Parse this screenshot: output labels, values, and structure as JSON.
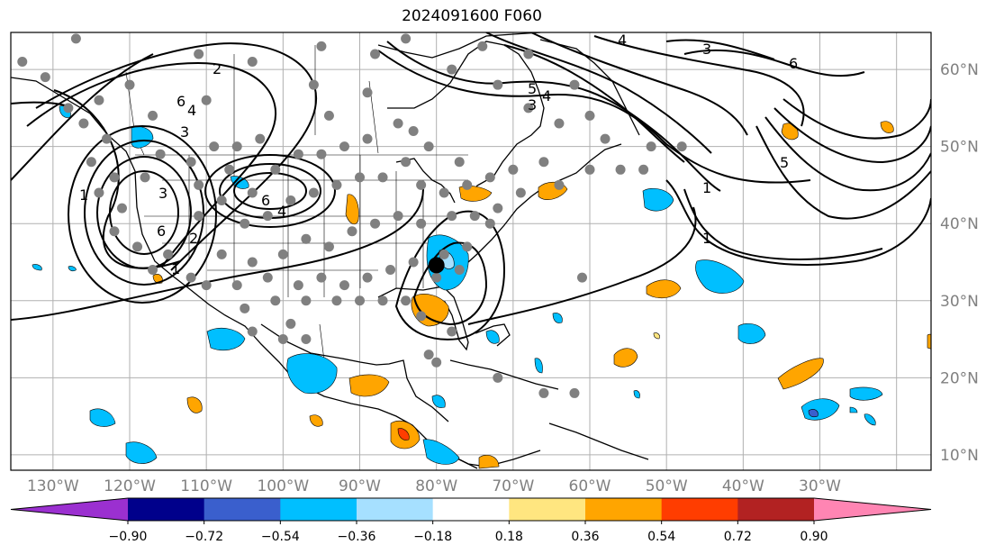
{
  "title": "2024091600 F060",
  "lon_labels": [
    "130°W",
    "120°W",
    "110°W",
    "100°W",
    "90°W",
    "80°W",
    "70°W",
    "60°W",
    "50°W",
    "40°W",
    "30°W"
  ],
  "lat_labels": [
    "60°N",
    "50°N",
    "40°N",
    "30°N",
    "20°N",
    "10°N"
  ],
  "colorbar": {
    "ticks": [
      "−0.90",
      "−0.72",
      "−0.54",
      "−0.36",
      "−0.18",
      "0.18",
      "0.36",
      "0.54",
      "0.72",
      "0.90"
    ],
    "colors": [
      "#9b30d0",
      "#00008b",
      "#3a5fcd",
      "#00bfff",
      "#a6e0ff",
      "#ffffff",
      "#ffe680",
      "#ffa500",
      "#ff3d00",
      "#b22222",
      "#ff85b3"
    ]
  },
  "contour_labels": [
    "6",
    "2",
    "4",
    "3",
    "1",
    "6",
    "3",
    "4",
    "6",
    "2",
    "1",
    "4",
    "5",
    "3",
    "4",
    "3",
    "6",
    "5",
    "1",
    "1"
  ],
  "center_marker": {
    "lon": -80.0,
    "lat": 34.6
  }
}
